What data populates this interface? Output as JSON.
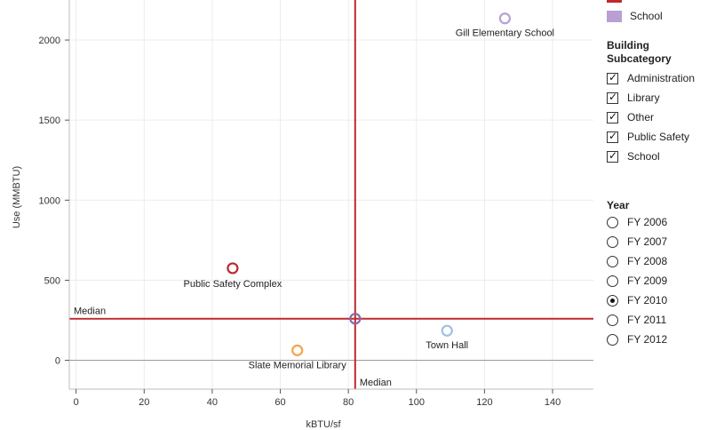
{
  "chart_data": {
    "type": "scatter",
    "xlabel": "kBTU/sf",
    "ylabel": "Use (MMBTU)",
    "xlim": [
      -2,
      152
    ],
    "ylim": [
      -180,
      2250
    ],
    "x_ticks": [
      0,
      20,
      40,
      60,
      80,
      100,
      120,
      140
    ],
    "y_ticks": [
      0,
      500,
      1000,
      1500,
      2000
    ],
    "grid": true,
    "points": [
      {
        "label": "Gill Elementary School",
        "x": 126,
        "y": 2135,
        "color": "#b8a0d4"
      },
      {
        "label": "Public Safety Complex",
        "x": 46,
        "y": 575,
        "color": "#c0282d"
      },
      {
        "label": "Slate Memorial Library",
        "x": 65,
        "y": 62,
        "color": "#f5a34a"
      },
      {
        "label": "Town Hall",
        "x": 109,
        "y": 185,
        "color": "#9ec0e6"
      },
      {
        "label": "",
        "x": 82,
        "y": 260,
        "color": "#8b68a8"
      }
    ],
    "reference_lines": [
      {
        "label": "Median",
        "axis": "y",
        "value": 260,
        "color": "#c0282d"
      },
      {
        "label": "Median",
        "axis": "x",
        "value": 82,
        "color": "#c0282d"
      }
    ]
  },
  "legend": {
    "category_items": [
      {
        "label": "School",
        "color": "#b8a0d4"
      }
    ],
    "subcategory": {
      "title_line1": "Building",
      "title_line2": "Subcategory",
      "items": [
        "Administration",
        "Library",
        "Other",
        "Public Safety",
        "School"
      ]
    },
    "year": {
      "title": "Year",
      "options": [
        "FY 2006",
        "FY 2007",
        "FY 2008",
        "FY 2009",
        "FY 2010",
        "FY 2011",
        "FY 2012"
      ],
      "selected": "FY 2010"
    }
  }
}
